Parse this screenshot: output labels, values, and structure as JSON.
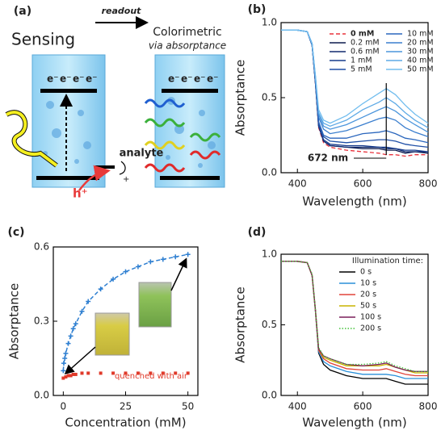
{
  "diagram": {
    "label": "(a)",
    "title": "Sensing",
    "readout": "readout",
    "colorimetric": "Colorimetric",
    "via": "via absorptance",
    "analyte": "analyte",
    "analyte_charge": "+",
    "hole": "h⁺",
    "electron": "e⁻"
  },
  "chart_data": [
    {
      "type": "line",
      "label": "(b)",
      "xlabel": "Wavelength (nm)",
      "ylabel": "Absorptance",
      "x": [
        350,
        400,
        430,
        445,
        455,
        465,
        480,
        500,
        550,
        600,
        650,
        672,
        700,
        730,
        760,
        800
      ],
      "xlim": [
        350,
        800
      ],
      "xticks": [
        400,
        600,
        800
      ],
      "ylim": [
        0,
        1
      ],
      "yticks": [
        {
          "value": 0,
          "label": "0.0"
        },
        {
          "value": 0.5,
          "label": "0.5"
        },
        {
          "value": 1,
          "label": "1.0"
        }
      ],
      "legend": "upper right",
      "annotation": "672 nm",
      "annotation_x": 672,
      "series": [
        {
          "name": "0 mM",
          "color": "#e8323c",
          "dash": "dashed",
          "bold": true,
          "values": [
            0.95,
            0.95,
            0.94,
            0.85,
            0.6,
            0.3,
            0.2,
            0.17,
            0.15,
            0.14,
            0.13,
            0.12,
            0.12,
            0.11,
            0.12,
            0.12
          ]
        },
        {
          "name": "0.2 mM",
          "color": "#0d1b4f",
          "values": [
            0.95,
            0.95,
            0.94,
            0.85,
            0.6,
            0.31,
            0.21,
            0.18,
            0.17,
            0.16,
            0.16,
            0.15,
            0.15,
            0.13,
            0.14,
            0.13
          ]
        },
        {
          "name": "0.6 mM",
          "color": "#102a6e",
          "values": [
            0.95,
            0.95,
            0.94,
            0.85,
            0.6,
            0.31,
            0.21,
            0.18,
            0.17,
            0.17,
            0.17,
            0.16,
            0.16,
            0.14,
            0.14,
            0.14
          ]
        },
        {
          "name": "1 mM",
          "color": "#163b8c",
          "values": [
            0.95,
            0.95,
            0.94,
            0.85,
            0.61,
            0.31,
            0.22,
            0.19,
            0.18,
            0.18,
            0.17,
            0.17,
            0.16,
            0.15,
            0.15,
            0.14
          ]
        },
        {
          "name": "5 mM",
          "color": "#1f4fa6",
          "values": [
            0.95,
            0.95,
            0.94,
            0.85,
            0.61,
            0.33,
            0.24,
            0.21,
            0.2,
            0.21,
            0.22,
            0.22,
            0.21,
            0.19,
            0.18,
            0.17
          ]
        },
        {
          "name": "10 mM",
          "color": "#2a66bd",
          "values": [
            0.95,
            0.95,
            0.94,
            0.85,
            0.62,
            0.34,
            0.25,
            0.23,
            0.23,
            0.26,
            0.27,
            0.28,
            0.26,
            0.23,
            0.22,
            0.2
          ]
        },
        {
          "name": "20 mM",
          "color": "#3a7ece",
          "values": [
            0.95,
            0.95,
            0.94,
            0.86,
            0.63,
            0.37,
            0.29,
            0.26,
            0.28,
            0.32,
            0.36,
            0.37,
            0.35,
            0.3,
            0.27,
            0.24
          ]
        },
        {
          "name": "30 mM",
          "color": "#4b95dc",
          "values": [
            0.95,
            0.95,
            0.94,
            0.86,
            0.64,
            0.39,
            0.31,
            0.29,
            0.32,
            0.37,
            0.42,
            0.44,
            0.41,
            0.36,
            0.32,
            0.27
          ]
        },
        {
          "name": "40 mM",
          "color": "#5eaae6",
          "values": [
            0.95,
            0.95,
            0.94,
            0.86,
            0.64,
            0.4,
            0.33,
            0.31,
            0.35,
            0.42,
            0.47,
            0.5,
            0.46,
            0.4,
            0.35,
            0.3
          ]
        },
        {
          "name": "50 mM",
          "color": "#72bdee",
          "values": [
            0.95,
            0.95,
            0.94,
            0.86,
            0.65,
            0.42,
            0.35,
            0.33,
            0.38,
            0.46,
            0.53,
            0.56,
            0.52,
            0.45,
            0.39,
            0.33
          ]
        }
      ]
    },
    {
      "type": "scatter",
      "label": "(c)",
      "xlabel": "Concentration (mM)",
      "ylabel": "Absorptance",
      "xlim": [
        -4,
        54
      ],
      "xticks": [
        0,
        25,
        50
      ],
      "ylim": [
        0,
        0.6
      ],
      "yticks": [
        {
          "value": 0,
          "label": "0.0"
        },
        {
          "value": 0.3,
          "label": "0.3"
        },
        {
          "value": 0.6,
          "label": "0.6"
        }
      ],
      "annotation": "quenched with air",
      "series": [
        {
          "color": "#2e7fd1",
          "dash": "dashed",
          "marker": "plus",
          "x": [
            0,
            0.2,
            0.6,
            1,
            2,
            3,
            4,
            5,
            7.5,
            10,
            15,
            20,
            25,
            30,
            35,
            40,
            45,
            50
          ],
          "values": [
            0.1,
            0.13,
            0.15,
            0.17,
            0.21,
            0.24,
            0.27,
            0.29,
            0.34,
            0.38,
            0.43,
            0.47,
            0.5,
            0.52,
            0.54,
            0.55,
            0.56,
            0.57
          ]
        },
        {
          "color": "#e03a2a",
          "marker": "square",
          "x": [
            0,
            1,
            2,
            3,
            4,
            5,
            7.5,
            10,
            15,
            20,
            25,
            30,
            35,
            40,
            45,
            50
          ],
          "values": [
            0.07,
            0.075,
            0.08,
            0.08,
            0.085,
            0.085,
            0.09,
            0.09,
            0.09,
            0.09,
            0.09,
            0.09,
            0.09,
            0.09,
            0.09,
            0.09
          ]
        }
      ]
    },
    {
      "type": "line",
      "label": "(d)",
      "xlabel": "Wavelength (nm)",
      "ylabel": "Absorptance",
      "x": [
        350,
        400,
        430,
        445,
        455,
        465,
        480,
        500,
        550,
        600,
        650,
        672,
        700,
        730,
        760,
        800
      ],
      "xlim": [
        350,
        800
      ],
      "xticks": [
        400,
        600,
        800
      ],
      "ylim": [
        0,
        1
      ],
      "yticks": [
        {
          "value": 0,
          "label": "0.0"
        },
        {
          "value": 0.5,
          "label": "0.5"
        },
        {
          "value": 1,
          "label": "1.0"
        }
      ],
      "legend": "upper right",
      "legend_title": "Illumination time:",
      "series": [
        {
          "name": "0 s",
          "color": "#000000",
          "values": [
            0.95,
            0.95,
            0.94,
            0.85,
            0.6,
            0.3,
            0.22,
            0.18,
            0.14,
            0.12,
            0.12,
            0.12,
            0.1,
            0.08,
            0.08,
            0.08
          ]
        },
        {
          "name": "10 s",
          "color": "#2a8fd8",
          "values": [
            0.95,
            0.95,
            0.94,
            0.85,
            0.6,
            0.31,
            0.24,
            0.21,
            0.17,
            0.15,
            0.15,
            0.15,
            0.14,
            0.12,
            0.12,
            0.12
          ]
        },
        {
          "name": "20 s",
          "color": "#e0443a",
          "values": [
            0.95,
            0.95,
            0.94,
            0.85,
            0.6,
            0.32,
            0.26,
            0.23,
            0.19,
            0.18,
            0.18,
            0.19,
            0.17,
            0.15,
            0.14,
            0.14
          ]
        },
        {
          "name": "50 s",
          "color": "#c8b400",
          "values": [
            0.95,
            0.95,
            0.94,
            0.85,
            0.61,
            0.33,
            0.27,
            0.25,
            0.21,
            0.21,
            0.21,
            0.22,
            0.2,
            0.18,
            0.16,
            0.16
          ]
        },
        {
          "name": "100 s",
          "color": "#7a1f5a",
          "values": [
            0.95,
            0.95,
            0.94,
            0.85,
            0.61,
            0.33,
            0.28,
            0.26,
            0.22,
            0.21,
            0.22,
            0.23,
            0.2,
            0.18,
            0.17,
            0.17
          ]
        },
        {
          "name": "200 s",
          "color": "#44c23a",
          "dash": "dotted",
          "values": [
            0.95,
            0.95,
            0.94,
            0.86,
            0.61,
            0.34,
            0.28,
            0.26,
            0.22,
            0.22,
            0.23,
            0.24,
            0.21,
            0.19,
            0.17,
            0.17
          ]
        }
      ]
    }
  ]
}
